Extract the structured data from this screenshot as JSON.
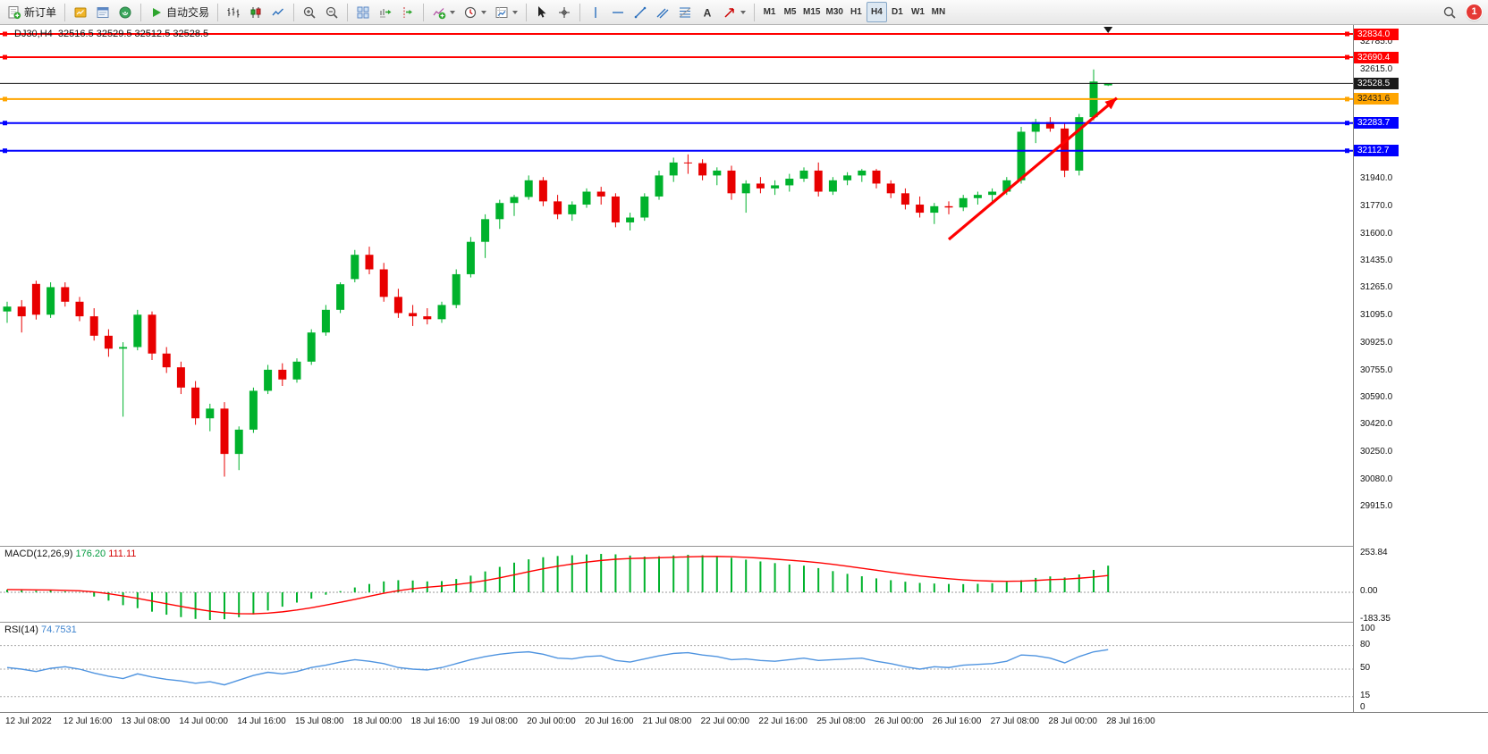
{
  "toolbar": {
    "new_order_label": "新订单",
    "autotrade_label": "自动交易",
    "timeframes": [
      "M1",
      "M5",
      "M15",
      "M30",
      "H1",
      "H4",
      "D1",
      "W1",
      "MN"
    ],
    "active_timeframe": "H4",
    "notification_count": "1",
    "icon_names": [
      "new-order-icon",
      "market-watch-icon",
      "navigator-icon",
      "terminal-icon",
      "autotrade-play-icon",
      "bar-chart-icon",
      "candlestick-icon",
      "line-chart-icon",
      "zoom-in-icon",
      "zoom-out-icon",
      "tile-windows-icon",
      "auto-scroll-icon",
      "chart-shift-icon",
      "indicators-icon",
      "periods-icon",
      "templates-icon",
      "cursor-icon",
      "crosshair-icon",
      "vertical-line-icon",
      "horizontal-line-icon",
      "trendline-icon",
      "channel-icon",
      "fibonacci-icon",
      "text-icon",
      "arrows-icon",
      "search-icon"
    ]
  },
  "chart_data": {
    "type": "candlestick",
    "symbol": "DJ30",
    "period": "H4",
    "title_text": "DJ30,H4",
    "ohlc_text": "32516.5 32529.5 32512.5 32528.5",
    "ohlc_display": {
      "open": "32516.5",
      "high": "32529.5",
      "low": "32512.5",
      "close": "32528.5"
    },
    "colors": {
      "bull": "#00B22C",
      "bear": "#E80000",
      "macd_histogram": "#00B22C",
      "macd_signal": "#FF0000",
      "rsi_line": "#4F94E0",
      "arrow": "#FF0000"
    },
    "candles": [
      [
        31120,
        31180,
        31050,
        31150
      ],
      [
        31150,
        31190,
        30990,
        31090
      ],
      [
        31290,
        31310,
        31070,
        31100
      ],
      [
        31100,
        31300,
        31080,
        31270
      ],
      [
        31270,
        31300,
        31150,
        31180
      ],
      [
        31180,
        31210,
        31060,
        31090
      ],
      [
        31090,
        31140,
        30940,
        30970
      ],
      [
        30970,
        31010,
        30840,
        30890
      ],
      [
        30890,
        30930,
        30470,
        30900
      ],
      [
        30900,
        31130,
        30880,
        31100
      ],
      [
        31100,
        31120,
        30820,
        30860
      ],
      [
        30860,
        30900,
        30740,
        30775
      ],
      [
        30775,
        30810,
        30610,
        30650
      ],
      [
        30650,
        30690,
        30420,
        30460
      ],
      [
        30460,
        30550,
        30380,
        30520
      ],
      [
        30520,
        30560,
        30100,
        30240
      ],
      [
        30240,
        30410,
        30140,
        30390
      ],
      [
        30390,
        30650,
        30370,
        30630
      ],
      [
        30630,
        30790,
        30610,
        30760
      ],
      [
        30760,
        30800,
        30660,
        30700
      ],
      [
        30700,
        30830,
        30680,
        30810
      ],
      [
        30810,
        31010,
        30790,
        30990
      ],
      [
        30990,
        31160,
        30970,
        31130
      ],
      [
        31130,
        31300,
        31110,
        31288
      ],
      [
        31320,
        31500,
        31300,
        31470
      ],
      [
        31470,
        31520,
        31350,
        31380
      ],
      [
        31380,
        31420,
        31180,
        31210
      ],
      [
        31210,
        31260,
        31080,
        31110
      ],
      [
        31110,
        31160,
        31030,
        31090
      ],
      [
        31090,
        31140,
        31040,
        31072
      ],
      [
        31072,
        31180,
        31050,
        31160
      ],
      [
        31160,
        31380,
        31140,
        31350
      ],
      [
        31350,
        31580,
        31330,
        31550
      ],
      [
        31550,
        31720,
        31450,
        31690
      ],
      [
        31690,
        31810,
        31630,
        31790
      ],
      [
        31790,
        31840,
        31710,
        31827
      ],
      [
        31827,
        31960,
        31810,
        31930
      ],
      [
        31930,
        31950,
        31770,
        31800
      ],
      [
        31800,
        31840,
        31690,
        31720
      ],
      [
        31720,
        31800,
        31680,
        31780
      ],
      [
        31780,
        31880,
        31760,
        31860
      ],
      [
        31860,
        31890,
        31780,
        31830
      ],
      [
        31830,
        31850,
        31640,
        31670
      ],
      [
        31670,
        31730,
        31620,
        31700
      ],
      [
        31700,
        31850,
        31680,
        31830
      ],
      [
        31830,
        31990,
        31810,
        31960
      ],
      [
        31960,
        32070,
        31920,
        32040
      ],
      [
        32040,
        32090,
        31970,
        32036
      ],
      [
        32036,
        32060,
        31930,
        31960
      ],
      [
        31960,
        32010,
        31900,
        31990
      ],
      [
        31990,
        32020,
        31810,
        31850
      ],
      [
        31850,
        31930,
        31730,
        31910
      ],
      [
        31910,
        31950,
        31850,
        31880
      ],
      [
        31880,
        31930,
        31840,
        31899
      ],
      [
        31899,
        31970,
        31860,
        31940
      ],
      [
        31940,
        32010,
        31920,
        31990
      ],
      [
        31990,
        32040,
        31830,
        31860
      ],
      [
        31860,
        31950,
        31840,
        31930
      ],
      [
        31930,
        31980,
        31900,
        31960
      ],
      [
        31960,
        32000,
        31920,
        31990
      ],
      [
        31990,
        32000,
        31880,
        31910
      ],
      [
        31910,
        31930,
        31820,
        31850
      ],
      [
        31850,
        31880,
        31750,
        31780
      ],
      [
        31780,
        31830,
        31700,
        31730
      ],
      [
        31730,
        31790,
        31660,
        31770
      ],
      [
        31770,
        31800,
        31720,
        31762
      ],
      [
        31762,
        31840,
        31740,
        31820
      ],
      [
        31820,
        31860,
        31780,
        31840
      ],
      [
        31840,
        31880,
        31800,
        31860
      ],
      [
        31860,
        31950,
        31840,
        31930
      ],
      [
        31930,
        32260,
        31910,
        32230
      ],
      [
        32230,
        32310,
        32160,
        32290
      ],
      [
        32290,
        32320,
        32230,
        32250
      ],
      [
        32250,
        32280,
        31950,
        31990
      ],
      [
        31990,
        32340,
        31960,
        32320
      ],
      [
        32320,
        32615,
        32300,
        32540
      ],
      [
        32516.5,
        32529.5,
        32512.5,
        32528.5
      ]
    ],
    "time_labels": [
      "12 Jul 2022",
      "12 Jul 16:00",
      "13 Jul 08:00",
      "14 Jul 00:00",
      "14 Jul 16:00",
      "15 Jul 08:00",
      "18 Jul 00:00",
      "18 Jul 16:00",
      "19 Jul 08:00",
      "20 Jul 00:00",
      "20 Jul 16:00",
      "21 Jul 08:00",
      "22 Jul 00:00",
      "22 Jul 16:00",
      "25 Jul 08:00",
      "26 Jul 00:00",
      "26 Jul 16:00",
      "27 Jul 08:00",
      "28 Jul 00:00",
      "28 Jul 16:00"
    ],
    "bars_per_label": 4,
    "price_ticks": [
      32785.0,
      32615.0,
      31940.0,
      31770.0,
      31600.0,
      31435.0,
      31265.0,
      31095.0,
      30925.0,
      30755.0,
      30590.0,
      30420.0,
      30250.0,
      30080.0,
      29915.0
    ],
    "price_lines": [
      {
        "price": 32834.0,
        "label": "32834.0",
        "color": "#FF0000",
        "text_color": "#FFFFFF"
      },
      {
        "price": 32690.4,
        "label": "32690.4",
        "color": "#FF0000",
        "text_color": "#FFFFFF"
      },
      {
        "price": 32528.5,
        "label": "32528.5",
        "color": "#1A1A1A",
        "text_color": "#FFFFFF",
        "role": "bid"
      },
      {
        "price": 32431.6,
        "label": "32431.6",
        "color": "#FFA500",
        "text_color": "#1A1A1A"
      },
      {
        "price": 32283.7,
        "label": "32283.7",
        "color": "#0000FF",
        "text_color": "#FFFFFF"
      },
      {
        "price": 32112.7,
        "label": "32112.7",
        "color": "#0000FF",
        "text_color": "#FFFFFF"
      }
    ],
    "trend_arrow": {
      "from_bar": 65,
      "from_price": 31565,
      "to_bar": 76.6,
      "to_price": 32438,
      "color": "#FF0000"
    }
  },
  "indicators": {
    "macd": {
      "name": "MACD(12,26,9)",
      "value_main": "176.20",
      "value_signal": "111.11",
      "scale": [
        {
          "v": 253.84,
          "t": "253.84"
        },
        {
          "v": 0,
          "t": "0.00"
        },
        {
          "v": -183.35,
          "t": "-183.35"
        }
      ],
      "levels": [
        0
      ],
      "histogram": [
        18,
        14,
        10,
        12,
        6,
        -2,
        -28,
        -55,
        -85,
        -105,
        -128,
        -148,
        -164,
        -176,
        -183.35,
        -178,
        -165,
        -146,
        -120,
        -95,
        -68,
        -42,
        -16,
        8,
        32,
        55,
        72,
        80,
        78,
        72,
        74,
        88,
        110,
        138,
        168,
        196,
        218,
        232,
        240,
        245,
        250,
        253.84,
        251,
        243,
        236,
        238,
        244,
        248,
        245,
        238,
        228,
        216,
        204,
        193,
        184,
        176,
        160,
        140,
        122,
        106,
        92,
        80,
        70,
        62,
        58,
        55,
        54,
        56,
        60,
        68,
        80,
        95,
        105,
        98,
        118,
        148,
        176.2
      ],
      "signal": [
        18,
        17.2,
        15.8,
        15,
        13.2,
        10.2,
        2.5,
        -9,
        -24.2,
        -40.4,
        -57.9,
        -75.9,
        -93.5,
        -110,
        -124.7,
        -135.4,
        -141.3,
        -142.2,
        -137.8,
        -129.2,
        -117,
        -102,
        -84.8,
        -66.2,
        -46.6,
        -26.3,
        -6.6,
        10.7,
        24.2,
        33.8,
        41.8,
        51,
        62.8,
        77.8,
        95.8,
        115.8,
        136.3,
        155.4,
        172.3,
        186.8,
        199.5,
        210.4,
        218.5,
        223.4,
        225.9,
        228.3,
        231.4,
        234.7,
        236.8,
        237,
        235.2,
        231.4,
        225.9,
        219.3,
        212.2,
        205,
        196,
        184.8,
        172.2,
        159,
        145.6,
        132.5,
        120,
        108.4,
        98.3,
        89.6,
        82.5,
        77.2,
        73.8,
        72.6,
        74.1,
        78.3,
        83.6,
        87,
        93,
        101,
        111.1
      ]
    },
    "rsi": {
      "name": "RSI(14)",
      "value": "74.7531",
      "scale": [
        {
          "v": 100,
          "t": "100"
        },
        {
          "v": 80,
          "t": "80"
        },
        {
          "v": 50,
          "t": "50"
        },
        {
          "v": 15,
          "t": "15"
        },
        {
          "v": 0,
          "t": "0"
        }
      ],
      "levels": [
        80,
        50,
        15
      ],
      "values": [
        52,
        50,
        47,
        51,
        53,
        50,
        45,
        41,
        38,
        44,
        40,
        37,
        35,
        32,
        34,
        30,
        36,
        42,
        46,
        44,
        47,
        52,
        55,
        59,
        62,
        60,
        57,
        52,
        50,
        49,
        52,
        57,
        62,
        66,
        69,
        71,
        72,
        69,
        64,
        63,
        66,
        67,
        61,
        59,
        63,
        67,
        70,
        71,
        68,
        66,
        62,
        63,
        61,
        60,
        62,
        64,
        61,
        62,
        63,
        64,
        60,
        57,
        53,
        50,
        53,
        52,
        55,
        56,
        57,
        60,
        68,
        67,
        64,
        58,
        66,
        72,
        74.75
      ]
    }
  }
}
